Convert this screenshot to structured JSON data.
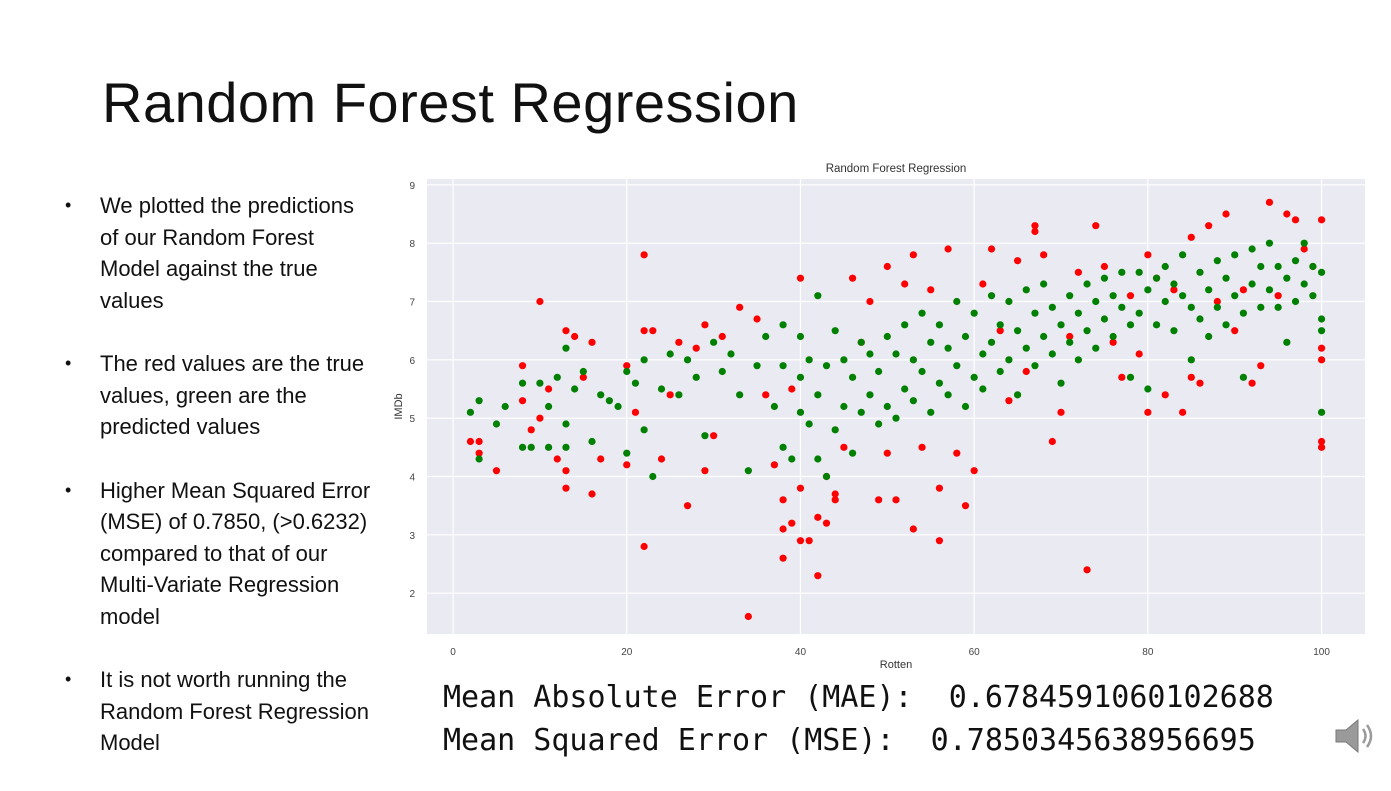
{
  "slide": {
    "title": "Random Forest Regression",
    "bullets": [
      "We plotted the predictions of our Random Forest Model against the true values",
      "The red values are the true values, green are the predicted values",
      "Higher Mean Squared Error (MSE) of 0.7850, (>0.6232) compared to that of our Multi-Variate Regression model",
      "It is not worth running the Random Forest Regression Model"
    ],
    "metrics": {
      "mae_line": "Mean Absolute Error (MAE):  0.6784591060102688",
      "mse_line": "Mean Squared Error (MSE):  0.7850345638956695"
    }
  },
  "chart_data": {
    "type": "scatter",
    "title": "Random Forest Regression",
    "xlabel": "Rotten",
    "ylabel": "IMDb",
    "xlim": [
      -3,
      105
    ],
    "ylim": [
      1.3,
      9.1
    ],
    "xticks": [
      0,
      20,
      40,
      60,
      80,
      100
    ],
    "yticks": [
      2,
      3,
      4,
      5,
      6,
      7,
      8,
      9
    ],
    "grid": true,
    "background": "#eaeaf2",
    "series": [
      {
        "color": "#ff0000",
        "points": [
          [
            2,
            4.6
          ],
          [
            3,
            4.4
          ],
          [
            3,
            4.6
          ],
          [
            5,
            4.1
          ],
          [
            8,
            5.9
          ],
          [
            8,
            5.3
          ],
          [
            9,
            4.8
          ],
          [
            10,
            7.0
          ],
          [
            10,
            5.0
          ],
          [
            11,
            5.5
          ],
          [
            12,
            4.3
          ],
          [
            13,
            6.5
          ],
          [
            13,
            4.1
          ],
          [
            13,
            3.8
          ],
          [
            14,
            6.4
          ],
          [
            15,
            5.7
          ],
          [
            16,
            3.7
          ],
          [
            16,
            6.3
          ],
          [
            17,
            4.3
          ],
          [
            20,
            5.9
          ],
          [
            20,
            4.2
          ],
          [
            21,
            5.1
          ],
          [
            22,
            2.8
          ],
          [
            22,
            7.8
          ],
          [
            22,
            6.5
          ],
          [
            23,
            6.5
          ],
          [
            24,
            4.3
          ],
          [
            25,
            5.4
          ],
          [
            26,
            6.3
          ],
          [
            27,
            3.5
          ],
          [
            28,
            6.2
          ],
          [
            29,
            4.1
          ],
          [
            29,
            6.6
          ],
          [
            30,
            4.7
          ],
          [
            31,
            6.4
          ],
          [
            33,
            6.9
          ],
          [
            34,
            1.6
          ],
          [
            35,
            6.7
          ],
          [
            36,
            5.4
          ],
          [
            37,
            4.2
          ],
          [
            38,
            3.6
          ],
          [
            38,
            3.1
          ],
          [
            38,
            2.6
          ],
          [
            39,
            3.2
          ],
          [
            39,
            5.5
          ],
          [
            40,
            7.4
          ],
          [
            40,
            2.9
          ],
          [
            40,
            3.8
          ],
          [
            41,
            2.9
          ],
          [
            42,
            3.3
          ],
          [
            42,
            2.3
          ],
          [
            43,
            3.2
          ],
          [
            43,
            4.0
          ],
          [
            44,
            3.6
          ],
          [
            44,
            3.7
          ],
          [
            45,
            4.5
          ],
          [
            46,
            7.4
          ],
          [
            47,
            6.3
          ],
          [
            48,
            7.0
          ],
          [
            49,
            3.6
          ],
          [
            50,
            4.4
          ],
          [
            50,
            7.6
          ],
          [
            51,
            3.6
          ],
          [
            52,
            7.3
          ],
          [
            53,
            3.1
          ],
          [
            53,
            7.8
          ],
          [
            54,
            4.5
          ],
          [
            55,
            7.2
          ],
          [
            56,
            3.8
          ],
          [
            56,
            2.9
          ],
          [
            57,
            7.9
          ],
          [
            58,
            4.4
          ],
          [
            59,
            3.5
          ],
          [
            60,
            4.1
          ],
          [
            61,
            7.3
          ],
          [
            62,
            7.9
          ],
          [
            63,
            6.5
          ],
          [
            64,
            5.3
          ],
          [
            65,
            7.7
          ],
          [
            66,
            5.8
          ],
          [
            67,
            8.3
          ],
          [
            67,
            8.2
          ],
          [
            68,
            7.8
          ],
          [
            69,
            4.6
          ],
          [
            70,
            5.1
          ],
          [
            71,
            6.4
          ],
          [
            72,
            7.5
          ],
          [
            73,
            2.4
          ],
          [
            74,
            8.3
          ],
          [
            75,
            7.6
          ],
          [
            76,
            6.3
          ],
          [
            77,
            5.7
          ],
          [
            78,
            7.1
          ],
          [
            79,
            6.1
          ],
          [
            80,
            5.1
          ],
          [
            80,
            7.8
          ],
          [
            81,
            7.4
          ],
          [
            82,
            5.4
          ],
          [
            83,
            7.2
          ],
          [
            84,
            5.1
          ],
          [
            85,
            8.1
          ],
          [
            85,
            5.7
          ],
          [
            86,
            5.6
          ],
          [
            87,
            8.3
          ],
          [
            88,
            7.0
          ],
          [
            89,
            8.5
          ],
          [
            90,
            6.5
          ],
          [
            91,
            7.2
          ],
          [
            92,
            5.6
          ],
          [
            93,
            5.9
          ],
          [
            94,
            8.7
          ],
          [
            95,
            7.1
          ],
          [
            96,
            8.5
          ],
          [
            97,
            8.4
          ],
          [
            98,
            7.9
          ],
          [
            99,
            7.6
          ],
          [
            100,
            8.4
          ],
          [
            100,
            6.2
          ],
          [
            100,
            6.0
          ],
          [
            100,
            4.6
          ],
          [
            100,
            4.5
          ]
        ]
      },
      {
        "color": "#008000",
        "points": [
          [
            2,
            5.1
          ],
          [
            3,
            5.3
          ],
          [
            3,
            4.3
          ],
          [
            5,
            4.9
          ],
          [
            6,
            5.2
          ],
          [
            8,
            4.5
          ],
          [
            8,
            5.6
          ],
          [
            9,
            4.5
          ],
          [
            10,
            5.6
          ],
          [
            11,
            5.2
          ],
          [
            11,
            4.5
          ],
          [
            12,
            5.7
          ],
          [
            13,
            6.2
          ],
          [
            13,
            4.9
          ],
          [
            13,
            4.5
          ],
          [
            14,
            5.5
          ],
          [
            15,
            5.8
          ],
          [
            16,
            4.6
          ],
          [
            17,
            5.4
          ],
          [
            18,
            5.3
          ],
          [
            19,
            5.2
          ],
          [
            20,
            5.8
          ],
          [
            20,
            4.4
          ],
          [
            21,
            5.6
          ],
          [
            22,
            4.8
          ],
          [
            22,
            6.0
          ],
          [
            23,
            4.0
          ],
          [
            24,
            5.5
          ],
          [
            25,
            6.1
          ],
          [
            26,
            5.4
          ],
          [
            27,
            6.0
          ],
          [
            28,
            5.7
          ],
          [
            29,
            4.7
          ],
          [
            30,
            6.3
          ],
          [
            31,
            5.8
          ],
          [
            32,
            6.1
          ],
          [
            33,
            5.4
          ],
          [
            34,
            4.1
          ],
          [
            35,
            5.9
          ],
          [
            36,
            6.4
          ],
          [
            37,
            5.2
          ],
          [
            38,
            4.5
          ],
          [
            38,
            5.9
          ],
          [
            38,
            6.6
          ],
          [
            39,
            4.3
          ],
          [
            40,
            5.1
          ],
          [
            40,
            5.7
          ],
          [
            40,
            6.4
          ],
          [
            41,
            4.9
          ],
          [
            41,
            6.0
          ],
          [
            42,
            7.1
          ],
          [
            42,
            4.3
          ],
          [
            42,
            5.4
          ],
          [
            43,
            4.0
          ],
          [
            43,
            5.9
          ],
          [
            44,
            4.8
          ],
          [
            44,
            6.5
          ],
          [
            45,
            5.2
          ],
          [
            45,
            6.0
          ],
          [
            46,
            4.4
          ],
          [
            46,
            5.7
          ],
          [
            47,
            5.1
          ],
          [
            47,
            6.3
          ],
          [
            48,
            5.4
          ],
          [
            48,
            6.1
          ],
          [
            49,
            4.9
          ],
          [
            49,
            5.8
          ],
          [
            50,
            5.2
          ],
          [
            50,
            6.4
          ],
          [
            51,
            5.0
          ],
          [
            51,
            6.1
          ],
          [
            52,
            5.5
          ],
          [
            52,
            6.6
          ],
          [
            53,
            5.3
          ],
          [
            53,
            6.0
          ],
          [
            54,
            5.8
          ],
          [
            54,
            6.8
          ],
          [
            55,
            5.1
          ],
          [
            55,
            6.3
          ],
          [
            56,
            5.6
          ],
          [
            56,
            6.6
          ],
          [
            57,
            5.4
          ],
          [
            57,
            6.2
          ],
          [
            58,
            5.9
          ],
          [
            58,
            7.0
          ],
          [
            59,
            5.2
          ],
          [
            59,
            6.4
          ],
          [
            60,
            5.7
          ],
          [
            60,
            6.8
          ],
          [
            61,
            5.5
          ],
          [
            61,
            6.1
          ],
          [
            62,
            6.3
          ],
          [
            62,
            7.1
          ],
          [
            63,
            5.8
          ],
          [
            63,
            6.6
          ],
          [
            64,
            6.0
          ],
          [
            64,
            7.0
          ],
          [
            65,
            5.4
          ],
          [
            65,
            6.5
          ],
          [
            66,
            6.2
          ],
          [
            66,
            7.2
          ],
          [
            67,
            5.9
          ],
          [
            67,
            6.8
          ],
          [
            68,
            6.4
          ],
          [
            68,
            7.3
          ],
          [
            69,
            6.1
          ],
          [
            69,
            6.9
          ],
          [
            70,
            5.6
          ],
          [
            70,
            6.6
          ],
          [
            71,
            6.3
          ],
          [
            71,
            7.1
          ],
          [
            72,
            6.0
          ],
          [
            72,
            6.8
          ],
          [
            73,
            6.5
          ],
          [
            73,
            7.3
          ],
          [
            74,
            6.2
          ],
          [
            74,
            7.0
          ],
          [
            75,
            6.7
          ],
          [
            75,
            7.4
          ],
          [
            76,
            6.4
          ],
          [
            76,
            7.1
          ],
          [
            77,
            6.9
          ],
          [
            77,
            7.5
          ],
          [
            78,
            5.7
          ],
          [
            78,
            6.6
          ],
          [
            79,
            6.8
          ],
          [
            79,
            7.5
          ],
          [
            80,
            5.5
          ],
          [
            80,
            7.2
          ],
          [
            81,
            6.6
          ],
          [
            81,
            7.4
          ],
          [
            82,
            7.0
          ],
          [
            82,
            7.6
          ],
          [
            83,
            6.5
          ],
          [
            83,
            7.3
          ],
          [
            84,
            7.1
          ],
          [
            84,
            7.8
          ],
          [
            85,
            6.0
          ],
          [
            85,
            6.9
          ],
          [
            86,
            6.7
          ],
          [
            86,
            7.5
          ],
          [
            87,
            6.4
          ],
          [
            87,
            7.2
          ],
          [
            88,
            6.9
          ],
          [
            88,
            7.7
          ],
          [
            89,
            6.6
          ],
          [
            89,
            7.4
          ],
          [
            90,
            7.1
          ],
          [
            90,
            7.8
          ],
          [
            91,
            5.7
          ],
          [
            91,
            6.8
          ],
          [
            92,
            7.3
          ],
          [
            92,
            7.9
          ],
          [
            93,
            6.9
          ],
          [
            93,
            7.6
          ],
          [
            94,
            7.2
          ],
          [
            94,
            8.0
          ],
          [
            95,
            6.9
          ],
          [
            95,
            7.6
          ],
          [
            96,
            7.4
          ],
          [
            96,
            6.3
          ],
          [
            97,
            7.0
          ],
          [
            97,
            7.7
          ],
          [
            98,
            7.3
          ],
          [
            98,
            8.0
          ],
          [
            99,
            7.1
          ],
          [
            99,
            7.6
          ],
          [
            100,
            7.5
          ],
          [
            100,
            6.7
          ],
          [
            100,
            6.5
          ],
          [
            100,
            5.1
          ]
        ]
      }
    ]
  },
  "icons": {
    "speaker": "speaker-icon"
  }
}
